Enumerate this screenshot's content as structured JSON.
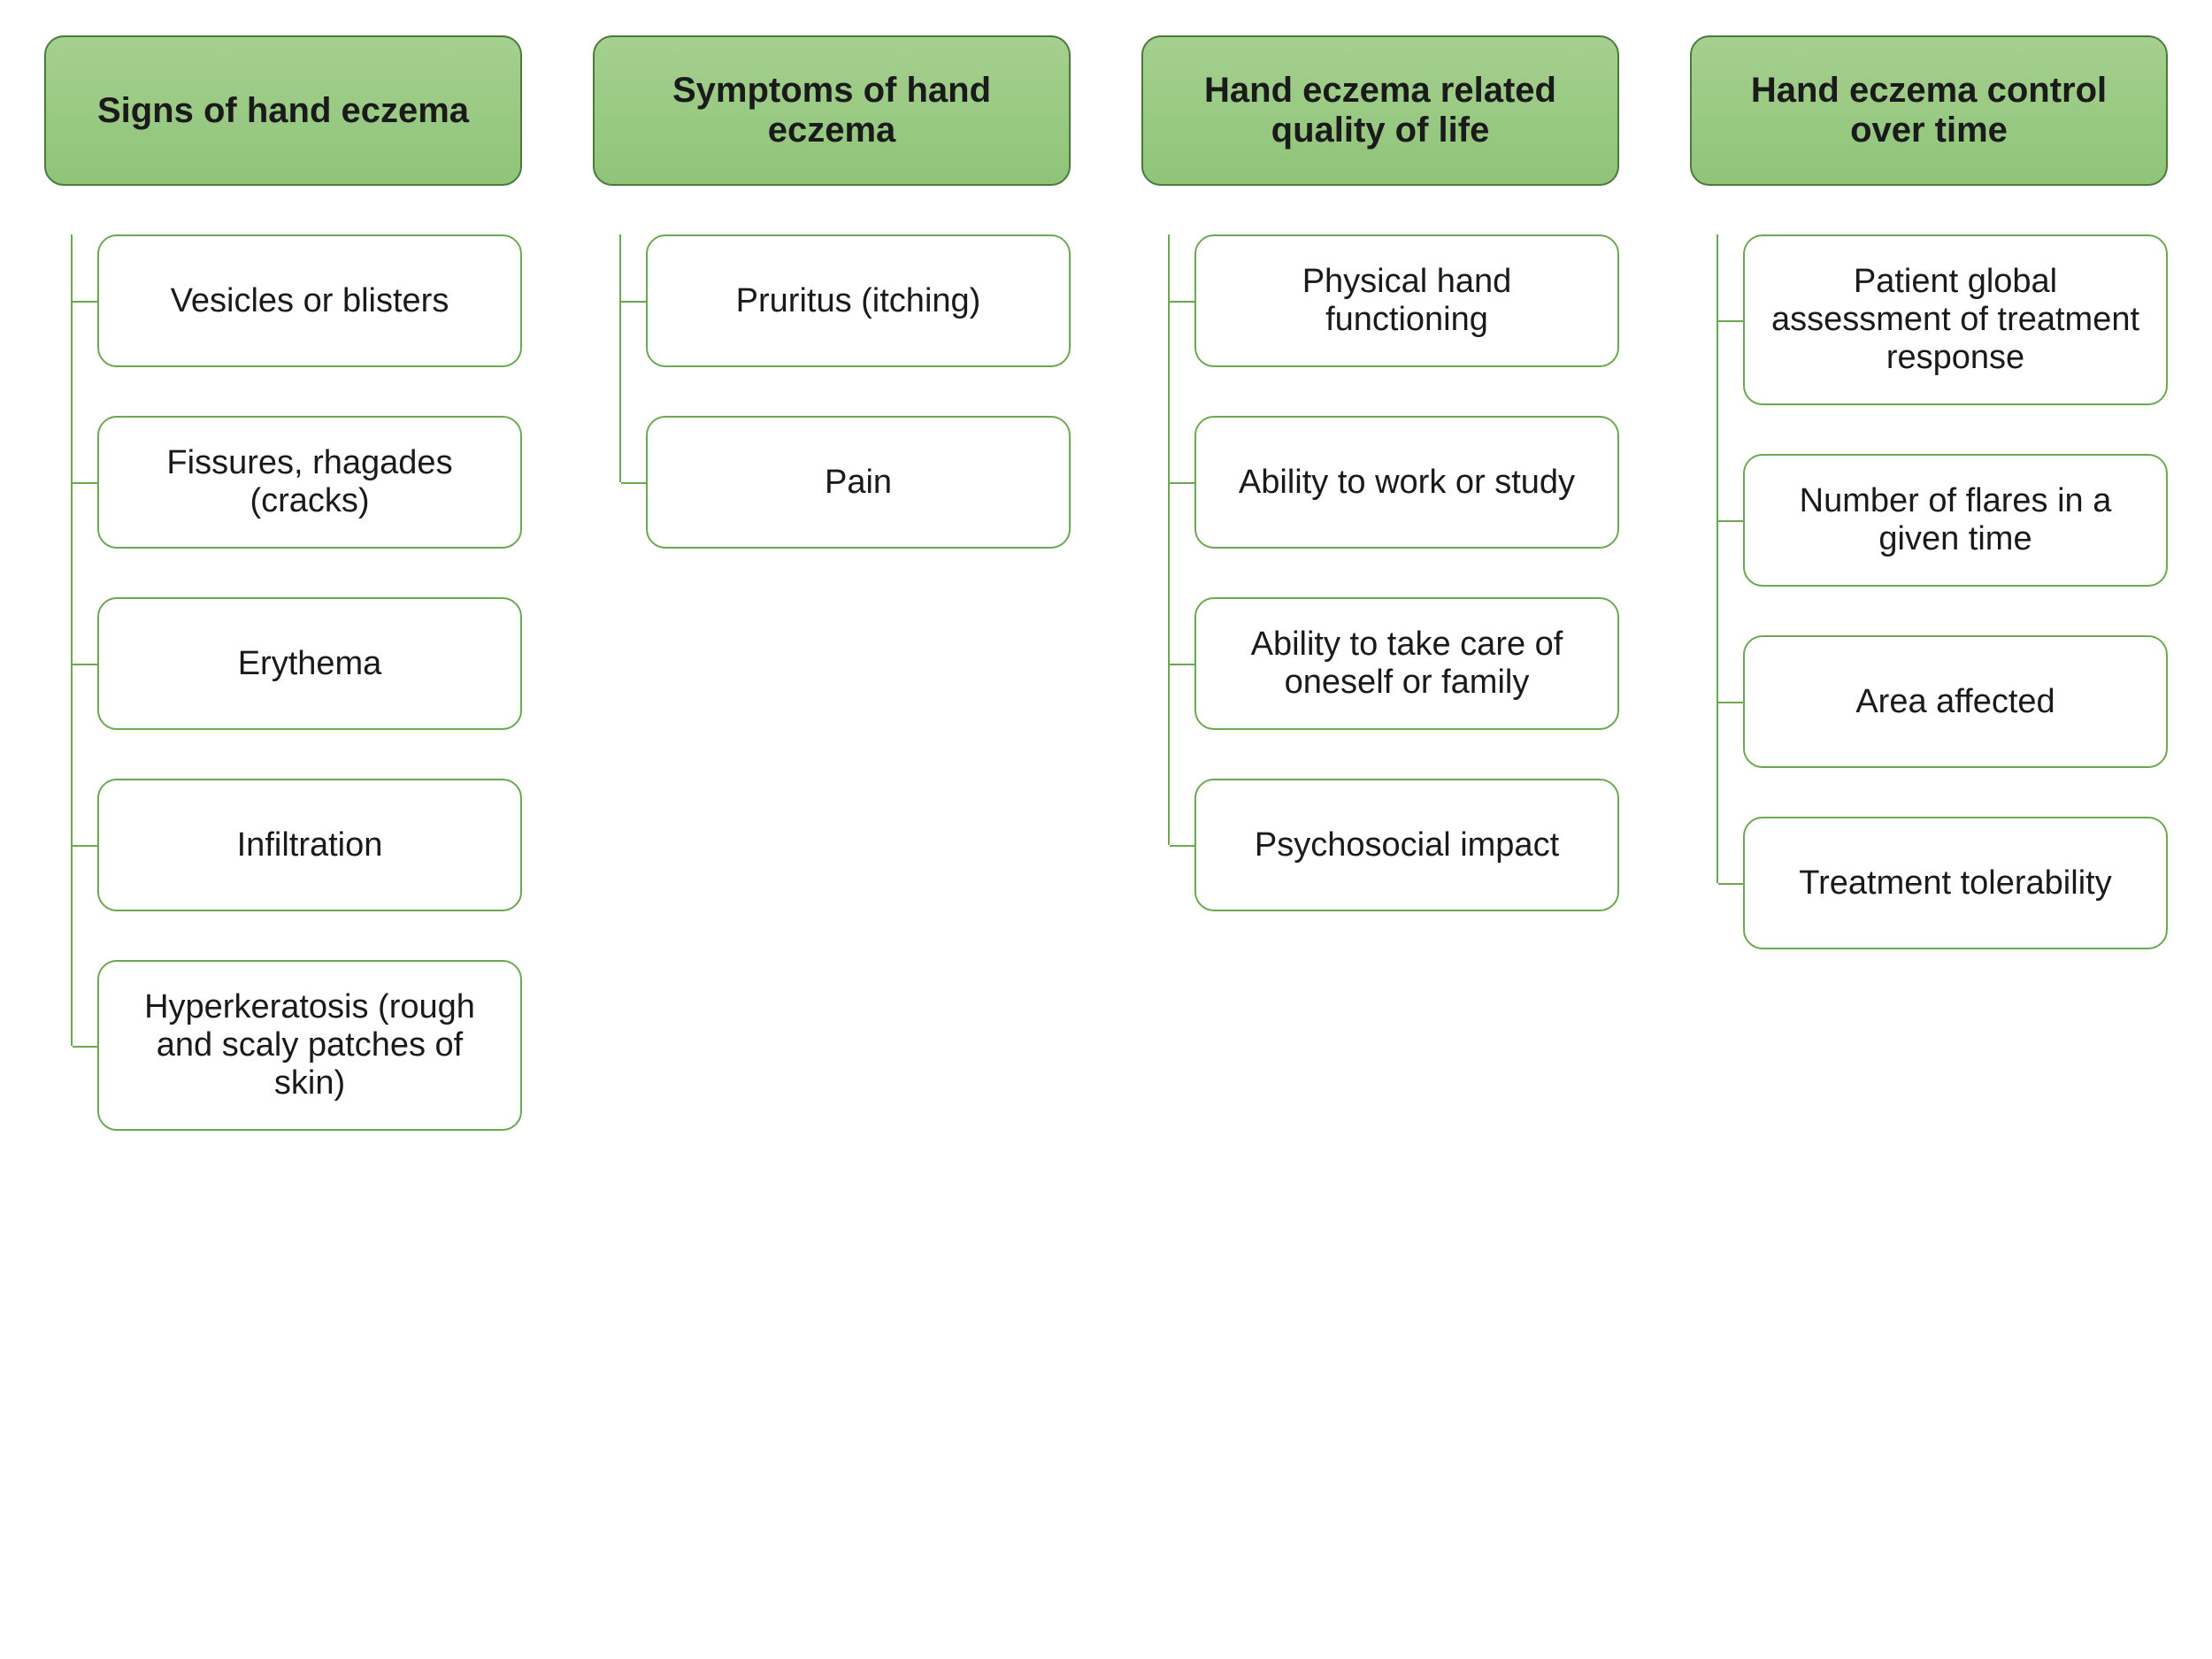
{
  "diagram": {
    "type": "tree",
    "background_color": "#ffffff",
    "header_style": {
      "fill_gradient_top": "#a5d08f",
      "fill_gradient_bottom": "#8fc479",
      "border_color": "#4a7a3a",
      "border_width": 2,
      "border_radius": 22,
      "font_weight": 700,
      "font_size_pt": 30,
      "text_color": "#1a1a1a"
    },
    "item_style": {
      "fill": "#ffffff",
      "border_color": "#6ba84f",
      "border_width": 2,
      "border_radius": 22,
      "font_weight": 400,
      "font_size_pt": 28,
      "text_color": "#1a1a1a"
    },
    "connector_color": "#6ba84f",
    "connector_width": 2,
    "column_gap": 80,
    "item_vertical_gap": 55,
    "columns": [
      {
        "header": "Signs of hand eczema",
        "items": [
          "Vesicles or blisters",
          "Fissures, rhagades (cracks)",
          "Erythema",
          "Infiltration",
          "Hyperkeratosis (rough and scaly patches of skin)"
        ]
      },
      {
        "header": "Symptoms of hand eczema",
        "items": [
          "Pruritus (itching)",
          "Pain"
        ]
      },
      {
        "header": "Hand eczema related quality of life",
        "items": [
          "Physical hand functioning",
          "Ability to work or study",
          "Ability to take care of oneself or family",
          "Psychosocial impact"
        ]
      },
      {
        "header": "Hand eczema control over time",
        "items": [
          "Patient global assessment of treatment response",
          "Number of flares in a given time",
          "Area affected",
          "Treatment tolerability"
        ]
      }
    ]
  }
}
